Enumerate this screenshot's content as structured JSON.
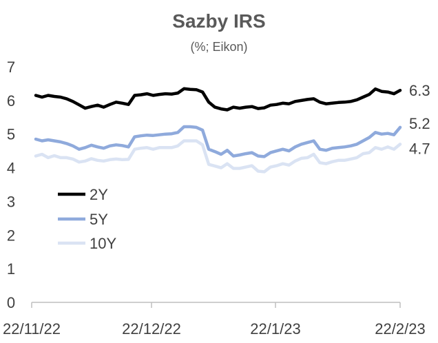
{
  "chart_data": {
    "type": "line",
    "title": "Sazby IRS",
    "subtitle": "(%; Eikon)",
    "xlabel": "",
    "ylabel": "",
    "ylim": [
      0,
      7
    ],
    "y_ticks": [
      "0",
      "1",
      "2",
      "3",
      "4",
      "5",
      "6",
      "7"
    ],
    "x_ticks": [
      "22/11/22",
      "22/12/22",
      "22/1/23",
      "22/2/23"
    ],
    "grid": false,
    "legend_position": "lower-left",
    "series": [
      {
        "name": "2Y",
        "color": "#000000",
        "end_label": "6.3",
        "values": [
          6.15,
          6.1,
          6.15,
          6.12,
          6.1,
          6.05,
          5.97,
          5.87,
          5.77,
          5.82,
          5.86,
          5.8,
          5.88,
          5.95,
          5.92,
          5.88,
          6.15,
          6.17,
          6.2,
          6.15,
          6.18,
          6.2,
          6.19,
          6.22,
          6.35,
          6.33,
          6.32,
          6.25,
          5.95,
          5.8,
          5.75,
          5.72,
          5.8,
          5.77,
          5.8,
          5.82,
          5.76,
          5.78,
          5.86,
          5.88,
          5.92,
          5.9,
          5.97,
          6.0,
          6.03,
          6.05,
          5.95,
          5.9,
          5.92,
          5.94,
          5.95,
          5.97,
          6.02,
          6.1,
          6.18,
          6.34,
          6.27,
          6.25,
          6.2,
          6.3
        ]
      },
      {
        "name": "5Y",
        "color": "#8faadc",
        "end_label": "5.2",
        "values": [
          4.85,
          4.8,
          4.83,
          4.8,
          4.77,
          4.72,
          4.65,
          4.55,
          4.6,
          4.67,
          4.62,
          4.58,
          4.65,
          4.68,
          4.66,
          4.62,
          4.92,
          4.95,
          4.97,
          4.96,
          4.98,
          5.0,
          5.01,
          5.05,
          5.22,
          5.22,
          5.2,
          5.12,
          4.55,
          4.48,
          4.4,
          4.52,
          4.35,
          4.38,
          4.42,
          4.45,
          4.35,
          4.33,
          4.45,
          4.5,
          4.55,
          4.5,
          4.62,
          4.7,
          4.75,
          4.8,
          4.55,
          4.52,
          4.58,
          4.6,
          4.62,
          4.65,
          4.7,
          4.8,
          4.9,
          5.05,
          5.0,
          5.02,
          4.98,
          5.2
        ]
      },
      {
        "name": "10Y",
        "color": "#dae3f3",
        "end_label": "4.7",
        "values": [
          4.35,
          4.4,
          4.3,
          4.36,
          4.3,
          4.3,
          4.26,
          4.17,
          4.2,
          4.27,
          4.22,
          4.2,
          4.24,
          4.26,
          4.24,
          4.25,
          4.55,
          4.58,
          4.6,
          4.55,
          4.6,
          4.6,
          4.6,
          4.65,
          4.8,
          4.8,
          4.8,
          4.68,
          4.1,
          4.05,
          4.0,
          4.12,
          3.98,
          3.98,
          4.02,
          4.06,
          3.9,
          3.88,
          4.02,
          4.06,
          4.12,
          4.08,
          4.2,
          4.28,
          4.3,
          4.4,
          4.15,
          4.12,
          4.18,
          4.22,
          4.22,
          4.26,
          4.3,
          4.42,
          4.45,
          4.6,
          4.55,
          4.62,
          4.55,
          4.7
        ]
      }
    ]
  }
}
